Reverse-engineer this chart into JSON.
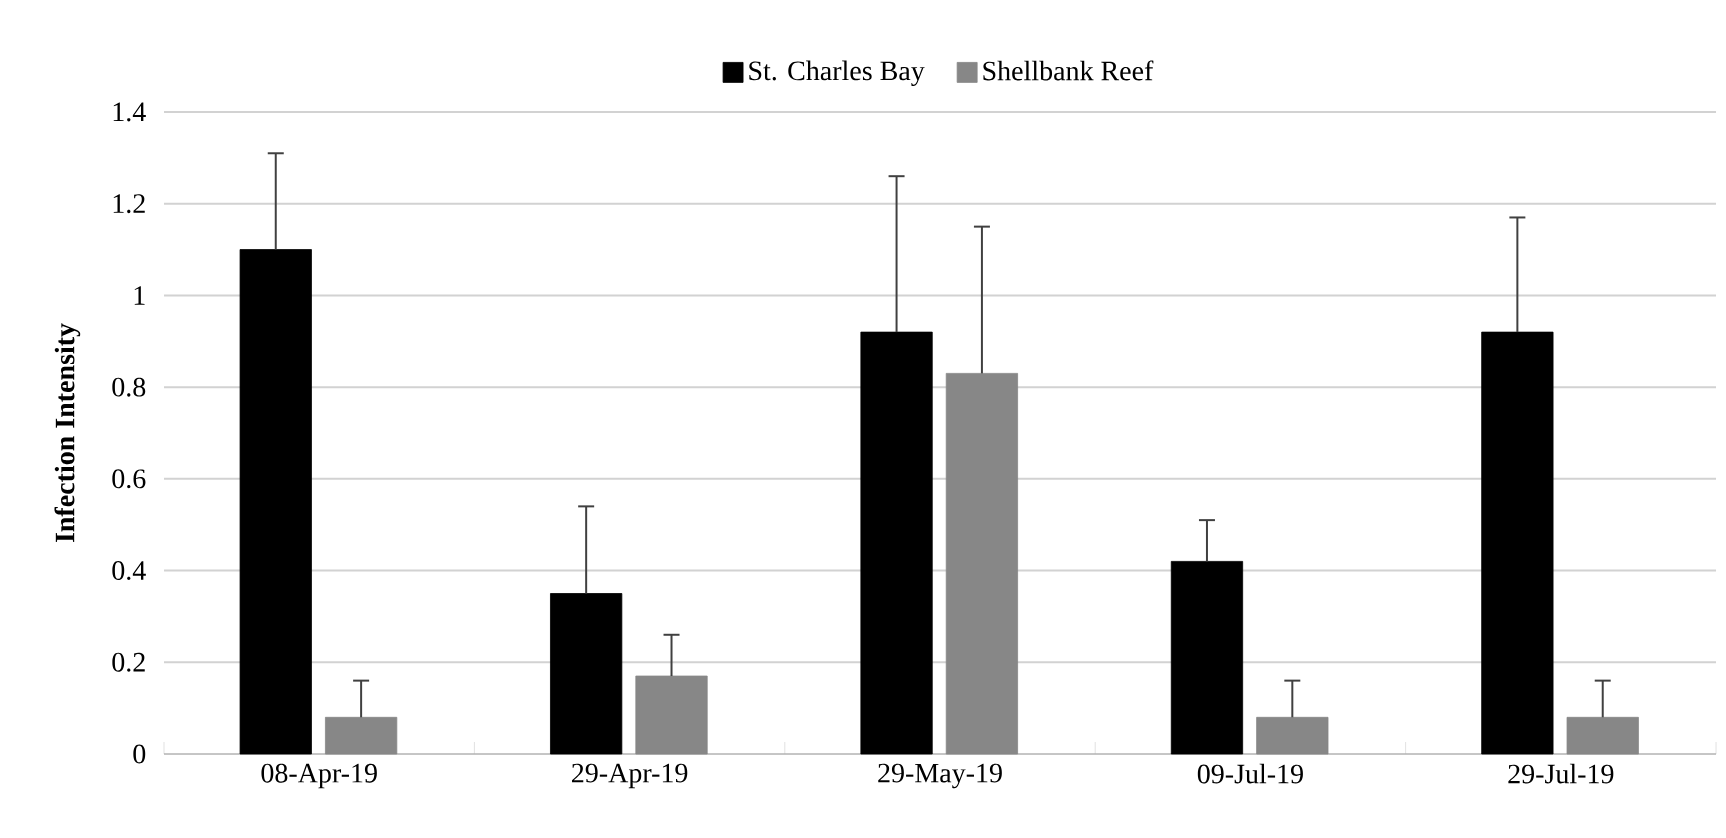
{
  "chart_data": {
    "type": "bar",
    "ylabel": "Infection Intensity",
    "categories": [
      "08-Apr-19",
      "29-Apr-19",
      "29-May-19",
      "09-Jul-19",
      "29-Jul-19"
    ],
    "series": [
      {
        "name": "St. Charles Bay",
        "color": "#000000",
        "values": [
          1.1,
          0.35,
          0.92,
          0.42,
          0.92
        ],
        "errors": [
          [
            1.1,
            1.31
          ],
          [
            0.35,
            0.54
          ],
          [
            0.92,
            1.26
          ],
          [
            0.42,
            0.51
          ],
          [
            0.92,
            1.17
          ]
        ]
      },
      {
        "name": "Shellbank Reef",
        "color": "#878787",
        "values": [
          0.08,
          0.17,
          0.83,
          0.08,
          0.08
        ],
        "errors": [
          [
            0.08,
            0.16
          ],
          [
            0.17,
            0.26
          ],
          [
            0.83,
            1.15
          ],
          [
            0.08,
            0.16
          ],
          [
            0.08,
            0.16
          ]
        ]
      }
    ],
    "ylim": [
      0,
      1.4
    ],
    "yticks": [
      0,
      0.2,
      0.4,
      0.6,
      0.8,
      1,
      1.2,
      1.4
    ],
    "grid": "y",
    "legend": "top"
  }
}
